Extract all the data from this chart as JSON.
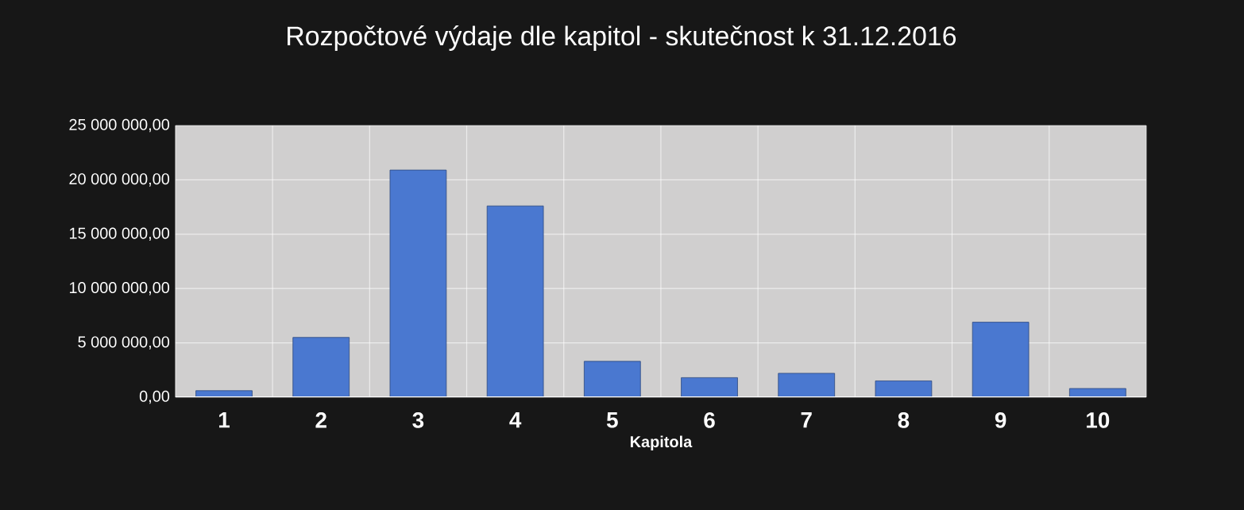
{
  "chart_data": {
    "type": "bar",
    "title": "Rozpočtové výdaje dle kapitol - skutečnost k 31.12.2016",
    "xlabel": "Kapitola",
    "categories": [
      "1",
      "2",
      "3",
      "4",
      "5",
      "6",
      "7",
      "8",
      "9",
      "10"
    ],
    "values": [
      600000,
      5500000,
      20900000,
      17600000,
      3300000,
      1800000,
      2200000,
      1500000,
      6900000,
      800000
    ],
    "color": "#4a78d0",
    "ylim": [
      0,
      25000000
    ],
    "yticks": [
      {
        "value": 0,
        "label": "0,00"
      },
      {
        "value": 5000000,
        "label": "5 000 000,00"
      },
      {
        "value": 10000000,
        "label": "10 000 000,00"
      },
      {
        "value": 15000000,
        "label": "15 000 000,00"
      },
      {
        "value": 20000000,
        "label": "20 000 000,00"
      },
      {
        "value": 25000000,
        "label": "25 000 000,00"
      }
    ],
    "grid": true
  }
}
